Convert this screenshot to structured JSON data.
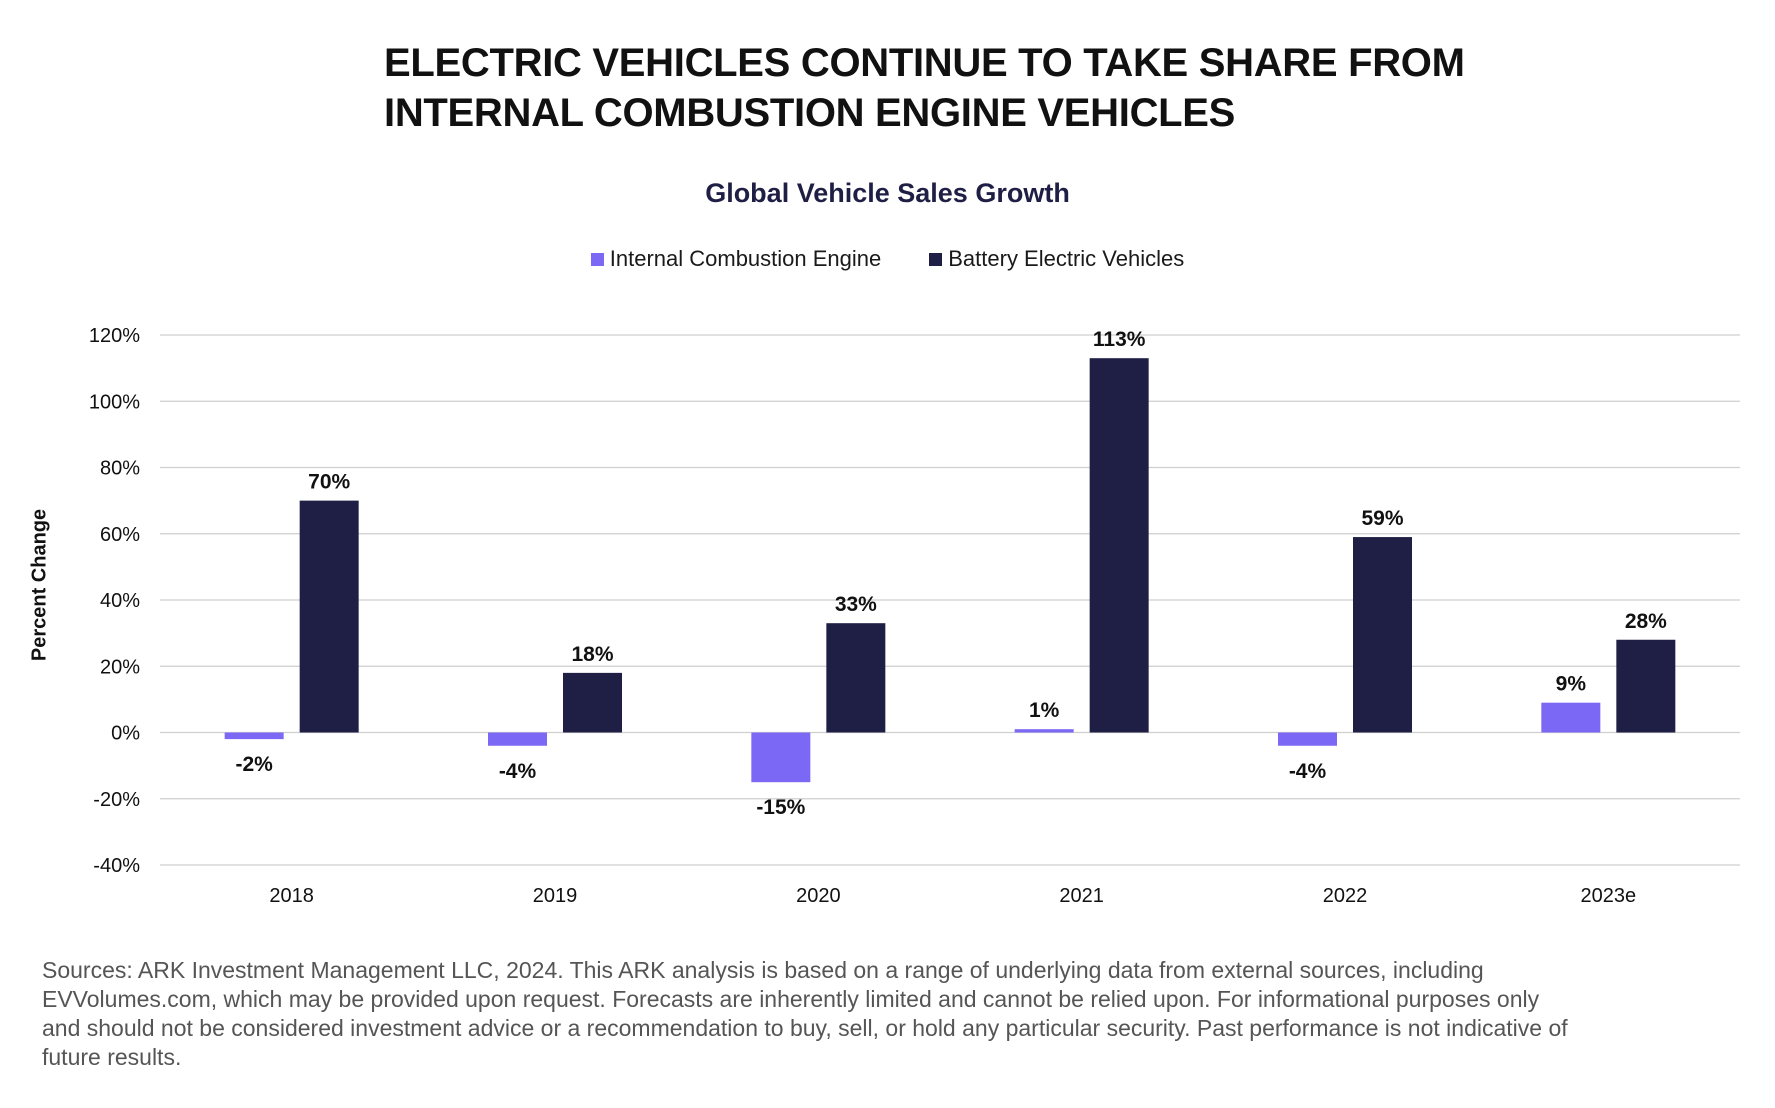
{
  "headline": {
    "line1": "ELECTRIC VEHICLES CONTINUE TO TAKE SHARE FROM",
    "line2": "INTERNAL COMBUSTION ENGINE VEHICLES"
  },
  "chart_data": {
    "type": "bar",
    "title": "Global Vehicle Sales Growth",
    "xlabel": "",
    "ylabel": "Percent Change",
    "categories": [
      "2018",
      "2019",
      "2020",
      "2021",
      "2022",
      "2023e"
    ],
    "series": [
      {
        "name": "Internal Combustion Engine",
        "color": "#7b68f5",
        "values": [
          -2,
          -4,
          -15,
          1,
          -4,
          9
        ],
        "labels": [
          "-2%",
          "-4%",
          "-15%",
          "1%",
          "-4%",
          "9%"
        ]
      },
      {
        "name": "Battery Electric Vehicles",
        "color": "#1f1f45",
        "values": [
          70,
          18,
          33,
          113,
          59,
          28
        ],
        "labels": [
          "70%",
          "18%",
          "33%",
          "113%",
          "59%",
          "28%"
        ]
      }
    ],
    "ylim": [
      -40,
      120
    ],
    "yticks": [
      120,
      100,
      80,
      60,
      40,
      20,
      0,
      -20,
      -40
    ],
    "ytick_labels": [
      "120%",
      "100%",
      "80%",
      "60%",
      "40%",
      "20%",
      "0%",
      "-20%",
      "-40%"
    ],
    "grid": true,
    "legend_position": "top-center"
  },
  "footnote": "Sources: ARK Investment Management LLC, 2024. This ARK analysis is based on a range of underlying data from external sources, including EVVolumes.com, which may be provided upon request. Forecasts are inherently limited and cannot be relied upon. For informational purposes only and should not be considered investment advice or a recommendation to buy, sell, or hold any particular security. Past performance is not indicative of future results."
}
